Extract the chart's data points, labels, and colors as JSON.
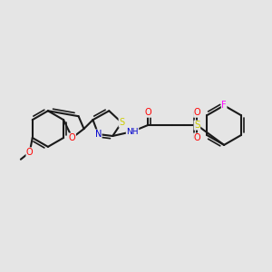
{
  "bg_color": "#e5e5e5",
  "bond_color": "#1a1a1a",
  "colors": {
    "O": "#ff0000",
    "N": "#0000cc",
    "S": "#cccc00",
    "F": "#ff00ff",
    "C": "#1a1a1a"
  },
  "lw": 1.5,
  "lw2": 1.2
}
